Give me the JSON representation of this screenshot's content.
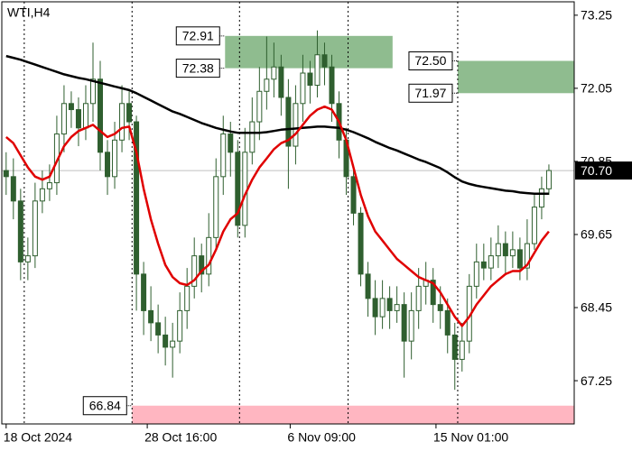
{
  "chart_data": {
    "type": "candlestick",
    "title": "WTI,H4",
    "ylim": [
      66.54,
      73.47
    ],
    "xlim": [
      -0.6,
      78.5
    ],
    "yticks": [
      73.25,
      72.05,
      70.85,
      69.65,
      68.45,
      67.25
    ],
    "xticks": [
      {
        "value": 0,
        "label": "18 Oct 2024"
      },
      {
        "value": 19.5,
        "label": "28 Oct 16:00"
      },
      {
        "value": 39.25,
        "label": "6 Nov 09:00"
      },
      {
        "value": 59.4,
        "label": "15 Nov 01:00"
      }
    ],
    "xgrid": [
      2.5,
      17.4,
      32.25,
      47.25,
      62.4
    ],
    "up_color": "#ffffff",
    "down_color": "#2f5f2f",
    "outline_color": "#2f5f2f",
    "open": [
      70.7,
      70.6,
      70.2,
      69.2,
      69.3,
      70.2,
      70.4,
      70.5,
      71.3,
      71.8,
      71.7,
      71.4,
      71.8,
      72.2,
      71.0,
      70.6,
      71.2,
      71.8,
      71.5,
      69.0,
      68.4,
      68.2,
      68.0,
      67.8,
      67.9,
      68.4,
      68.8,
      69.3,
      69.0,
      69.6,
      70.6,
      71.3,
      71.0,
      69.8,
      71.0,
      71.5,
      72.0,
      72.2,
      72.4,
      71.9,
      71.1,
      71.8,
      72.3,
      72.1,
      72.6,
      72.4,
      71.8,
      71.2,
      70.6,
      70.0,
      69.0,
      68.6,
      68.3,
      68.6,
      68.4,
      68.5,
      67.9,
      68.4,
      68.8,
      68.9,
      68.5,
      68.4,
      68.0,
      67.6,
      67.9,
      68.8,
      69.2,
      69.1,
      69.3,
      69.5,
      69.3,
      69.4,
      69.1,
      69.5,
      70.1,
      70.4
    ],
    "high": [
      71.0,
      70.9,
      70.4,
      69.6,
      70.5,
      70.7,
      70.8,
      71.6,
      72.1,
      72.0,
      71.9,
      72.1,
      72.8,
      72.5,
      71.2,
      71.5,
      72.1,
      72.0,
      71.6,
      69.2,
      68.8,
      68.5,
      68.3,
      68.2,
      68.7,
      69.1,
      69.6,
      69.5,
      70.0,
      70.9,
      71.6,
      71.5,
      71.2,
      71.4,
      71.9,
      72.4,
      72.9,
      72.8,
      72.6,
      72.2,
      72.1,
      72.6,
      72.5,
      73.0,
      72.8,
      72.6,
      72.0,
      71.4,
      70.8,
      70.1,
      69.2,
      68.9,
      68.9,
      68.8,
      68.8,
      68.7,
      68.7,
      69.1,
      69.2,
      69.1,
      68.8,
      68.6,
      68.2,
      68.2,
      69.0,
      69.5,
      69.5,
      69.6,
      69.8,
      69.7,
      69.7,
      69.6,
      69.9,
      70.3,
      70.6,
      70.8
    ],
    "low": [
      70.3,
      69.9,
      68.9,
      68.9,
      69.1,
      70.0,
      70.2,
      70.3,
      71.0,
      71.4,
      71.1,
      71.2,
      71.5,
      70.7,
      70.3,
      70.4,
      71.0,
      71.2,
      68.4,
      68.0,
      67.9,
      67.7,
      67.5,
      67.3,
      67.7,
      68.1,
      68.6,
      68.7,
      68.8,
      69.4,
      70.3,
      70.6,
      69.6,
      69.6,
      70.8,
      71.2,
      71.7,
      71.9,
      71.6,
      70.4,
      70.8,
      71.5,
      71.8,
      71.9,
      72.1,
      71.5,
      70.9,
      70.3,
      69.8,
      68.8,
      68.3,
      68.0,
      68.1,
      68.1,
      68.2,
      67.3,
      67.6,
      68.1,
      68.5,
      68.2,
      68.1,
      67.7,
      67.1,
      67.4,
      67.7,
      68.6,
      68.9,
      68.9,
      69.1,
      69.0,
      69.1,
      68.9,
      68.9,
      69.4,
      69.9,
      70.3
    ],
    "close": [
      70.6,
      70.2,
      69.2,
      69.3,
      70.2,
      70.4,
      70.5,
      71.3,
      71.8,
      71.7,
      71.4,
      71.8,
      72.2,
      71.0,
      70.6,
      71.2,
      71.8,
      71.5,
      69.0,
      68.4,
      68.2,
      68.0,
      67.8,
      67.9,
      68.4,
      68.8,
      69.3,
      69.0,
      69.6,
      70.6,
      71.3,
      71.0,
      69.8,
      71.0,
      71.5,
      72.0,
      72.2,
      72.4,
      71.9,
      71.1,
      71.8,
      72.3,
      72.1,
      72.6,
      72.4,
      71.8,
      71.2,
      70.6,
      70.0,
      69.0,
      68.6,
      68.3,
      68.6,
      68.4,
      68.5,
      67.9,
      68.4,
      68.8,
      68.9,
      68.5,
      68.4,
      68.0,
      67.6,
      67.9,
      68.8,
      69.2,
      69.1,
      69.3,
      69.5,
      69.3,
      69.4,
      69.1,
      69.5,
      70.1,
      70.4,
      70.7
    ],
    "lines": [
      {
        "color": "#000000",
        "values": [
          72.58,
          72.55,
          72.52,
          72.48,
          72.44,
          72.4,
          72.36,
          72.32,
          72.28,
          72.25,
          72.22,
          72.2,
          72.17,
          72.14,
          72.11,
          72.08,
          72.05,
          72.02,
          71.97,
          71.91,
          71.85,
          71.79,
          71.73,
          71.67,
          71.63,
          71.58,
          71.53,
          71.48,
          71.44,
          71.4,
          71.37,
          71.34,
          71.32,
          71.32,
          71.32,
          71.32,
          71.33,
          71.35,
          71.37,
          71.38,
          71.39,
          71.4,
          71.41,
          71.42,
          71.42,
          71.41,
          71.4,
          71.37,
          71.33,
          71.28,
          71.23,
          71.17,
          71.12,
          71.07,
          71.03,
          70.98,
          70.93,
          70.88,
          70.84,
          70.79,
          70.74,
          70.67,
          70.59,
          70.52,
          70.48,
          70.45,
          70.43,
          70.41,
          70.39,
          70.37,
          70.36,
          70.34,
          70.33,
          70.32,
          70.32,
          70.32
        ]
      },
      {
        "color": "#e00000",
        "values": [
          71.25,
          71.15,
          70.95,
          70.75,
          70.6,
          70.55,
          70.6,
          70.85,
          71.1,
          71.25,
          71.35,
          71.4,
          71.45,
          71.35,
          71.25,
          71.3,
          71.4,
          71.42,
          71.0,
          70.4,
          69.9,
          69.5,
          69.15,
          68.95,
          68.85,
          68.82,
          68.9,
          69.05,
          69.15,
          69.4,
          69.7,
          69.9,
          70.0,
          70.3,
          70.55,
          70.75,
          70.9,
          71.05,
          71.15,
          71.2,
          71.3,
          71.45,
          71.6,
          71.7,
          71.75,
          71.7,
          71.5,
          71.2,
          70.75,
          70.3,
          69.95,
          69.7,
          69.55,
          69.4,
          69.25,
          69.15,
          69.05,
          68.95,
          68.9,
          68.85,
          68.7,
          68.5,
          68.3,
          68.15,
          68.3,
          68.5,
          68.65,
          68.8,
          68.9,
          69.0,
          69.05,
          69.05,
          69.15,
          69.35,
          69.55,
          69.7
        ]
      }
    ],
    "zones": [
      {
        "color": "#8fbc8f",
        "high": 72.91,
        "low": 72.38,
        "x": [
          30.25,
          53.4
        ]
      },
      {
        "color": "#8fbc8f",
        "high": {
          "value": 72.5,
          "label": "72.50"
        },
        "low": 71.97,
        "x": [
          62.4,
          78.5
        ]
      },
      {
        "color": "#ffb6c1",
        "high": 66.84,
        "x": [
          17.4,
          78.5
        ]
      }
    ],
    "last_price": {
      "value": 70.7,
      "label": "70.70"
    }
  }
}
